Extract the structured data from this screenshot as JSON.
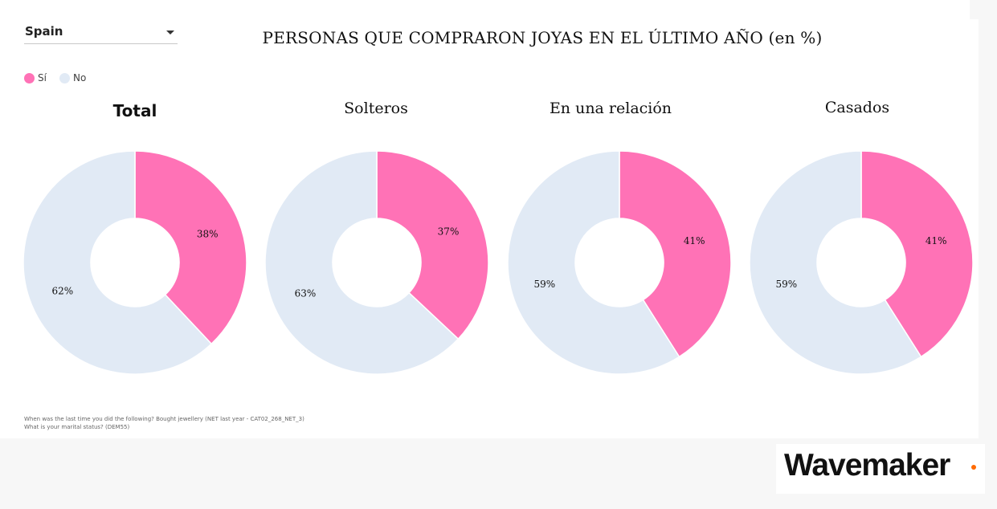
{
  "filter": {
    "selected": "Spain"
  },
  "title": "PERSONAS QUE COMPRARON JOYAS EN EL ÚLTIMO AÑO (en %)",
  "legend": [
    {
      "label": "Sí",
      "color": "#ff72b6"
    },
    {
      "label": "No",
      "color": "#e1eaf5"
    }
  ],
  "chart_data": [
    {
      "type": "pie",
      "title": "Total",
      "categories": [
        "Sí",
        "No"
      ],
      "values": [
        38,
        62
      ],
      "labels": [
        "38%",
        "62%"
      ]
    },
    {
      "type": "pie",
      "title": "Solteros",
      "categories": [
        "Sí",
        "No"
      ],
      "values": [
        37,
        63
      ],
      "labels": [
        "37%",
        "63%"
      ]
    },
    {
      "type": "pie",
      "title": "En una relación",
      "categories": [
        "Sí",
        "No"
      ],
      "values": [
        41,
        59
      ],
      "labels": [
        "41%",
        "59%"
      ]
    },
    {
      "type": "pie",
      "title": "Casados",
      "categories": [
        "Sí",
        "No"
      ],
      "values": [
        41,
        59
      ],
      "labels": [
        "41%",
        "59%"
      ]
    }
  ],
  "footnotes": [
    "When was the last time you did the following? Bought jewellery (NET last year - CAT02_268_NET_3)",
    "What is your marital status? (DEM55)"
  ],
  "brand": {
    "name": "Wavemaker",
    "dot_color": "#ff6a00"
  }
}
